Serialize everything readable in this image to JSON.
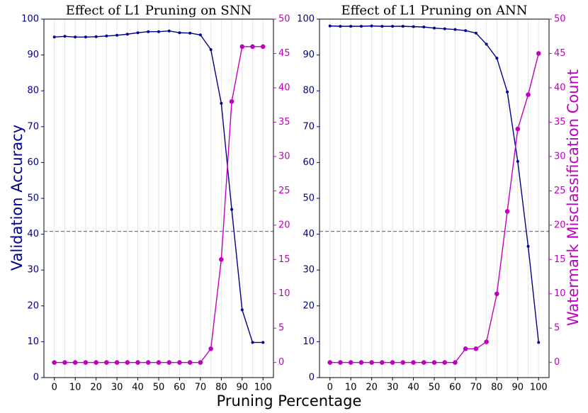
{
  "colors": {
    "accuracy": "#00008B",
    "watermark": "#C000C0",
    "threshold": "#808080",
    "grid": "#e6e6e6"
  },
  "chart_data": [
    {
      "type": "line",
      "title": "Effect of L1 Pruning on SNN",
      "xlabel": "Pruning Percentage",
      "ylabel": "Validation Accuracy",
      "ylabel_right": "",
      "x": [
        0,
        5,
        10,
        15,
        20,
        25,
        30,
        35,
        40,
        45,
        50,
        55,
        60,
        65,
        70,
        75,
        80,
        85,
        90,
        95,
        100
      ],
      "xticks": [
        0,
        10,
        20,
        30,
        40,
        50,
        60,
        70,
        80,
        90,
        100
      ],
      "xlim": [
        -5,
        105
      ],
      "ylim_left": [
        0,
        100
      ],
      "ylim_right": [
        -2.2,
        50
      ],
      "yticks_left": [
        0,
        10,
        20,
        30,
        40,
        50,
        60,
        70,
        80,
        90,
        100
      ],
      "yticks_right": [
        0,
        5,
        10,
        15,
        20,
        25,
        30,
        35,
        40,
        45,
        50
      ],
      "threshold_accuracy": 40.8,
      "series": [
        {
          "name": "Validation Accuracy",
          "axis": "left",
          "values": [
            95.0,
            95.2,
            95.0,
            95.0,
            95.1,
            95.3,
            95.5,
            95.8,
            96.2,
            96.5,
            96.5,
            96.7,
            96.2,
            96.1,
            95.6,
            91.5,
            76.5,
            46.9,
            18.9,
            9.8,
            9.8
          ]
        },
        {
          "name": "Watermark Misclassification Count",
          "axis": "right",
          "values": [
            0,
            0,
            0,
            0,
            0,
            0,
            0,
            0,
            0,
            0,
            0,
            0,
            0,
            0,
            0,
            2,
            15,
            38,
            46,
            46,
            46
          ]
        }
      ]
    },
    {
      "type": "line",
      "title": "Effect of L1 Pruning on ANN",
      "xlabel": "Pruning Percentage",
      "ylabel": "",
      "ylabel_right": "Watermark Misclassification Count",
      "x": [
        0,
        5,
        10,
        15,
        20,
        25,
        30,
        35,
        40,
        45,
        50,
        55,
        60,
        65,
        70,
        75,
        80,
        85,
        90,
        95,
        100
      ],
      "xticks": [
        0,
        10,
        20,
        30,
        40,
        50,
        60,
        70,
        80,
        90,
        100
      ],
      "xlim": [
        -5,
        105
      ],
      "ylim_left": [
        0,
        100
      ],
      "ylim_right": [
        -2.2,
        50
      ],
      "yticks_left": [
        0,
        10,
        20,
        30,
        40,
        50,
        60,
        70,
        80,
        90,
        100
      ],
      "yticks_right": [
        0,
        5,
        10,
        15,
        20,
        25,
        30,
        35,
        40,
        45,
        50
      ],
      "threshold_accuracy": 40.8,
      "series": [
        {
          "name": "Validation Accuracy",
          "axis": "left",
          "values": [
            98.1,
            98.0,
            98.0,
            98.0,
            98.1,
            98.0,
            98.0,
            98.0,
            97.9,
            97.8,
            97.5,
            97.3,
            97.1,
            96.8,
            96.1,
            93.0,
            89.1,
            79.7,
            60.3,
            36.6,
            9.8
          ]
        },
        {
          "name": "Watermark Misclassification Count",
          "axis": "right",
          "values": [
            0,
            0,
            0,
            0,
            0,
            0,
            0,
            0,
            0,
            0,
            0,
            0,
            0,
            2,
            2,
            3,
            10,
            22,
            34,
            39,
            45
          ]
        }
      ]
    }
  ]
}
